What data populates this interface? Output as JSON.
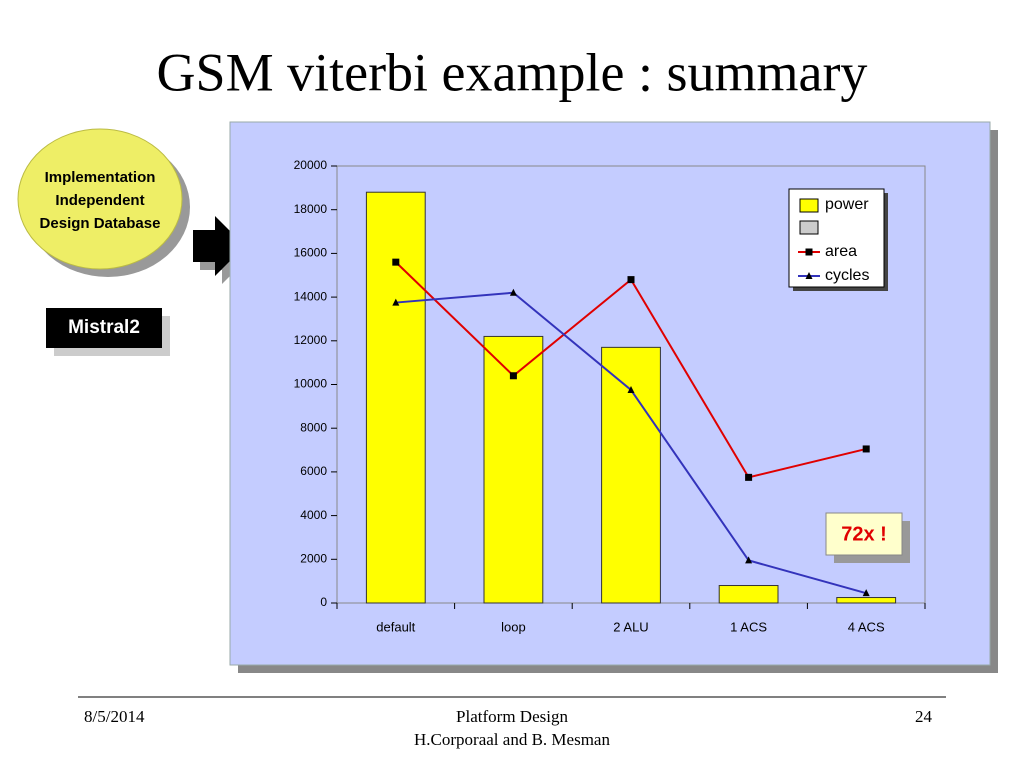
{
  "slide": {
    "title": "GSM viterbi example : summary",
    "database_label": [
      "Implementation",
      "Independent",
      "Design Database"
    ],
    "tool_label": "Mistral2",
    "footer": {
      "date": "8/5/2014",
      "center": [
        "Platform Design",
        "H.Corporaal and B. Mesman"
      ],
      "page": "24"
    }
  },
  "chart_data": {
    "type": "bar",
    "categories": [
      "default",
      "loop",
      "2 ALU",
      "1 ACS",
      "4 ACS"
    ],
    "series": [
      {
        "name": "power",
        "type": "bar",
        "color": "#ffff00",
        "values": [
          18800,
          12200,
          11700,
          800,
          250
        ]
      },
      {
        "name": "area",
        "type": "line",
        "marker": "square",
        "color": "#e00000",
        "values": [
          15600,
          10400,
          14800,
          5750,
          7050
        ]
      },
      {
        "name": "cycles",
        "type": "line",
        "marker": "triangle",
        "color": "#3333bb",
        "values": [
          13750,
          14200,
          9750,
          1950,
          450
        ]
      }
    ],
    "ylim": [
      0,
      20000
    ],
    "yticks": [
      0,
      2000,
      4000,
      6000,
      8000,
      10000,
      12000,
      14000,
      16000,
      18000,
      20000
    ],
    "annotation": "72x !"
  }
}
